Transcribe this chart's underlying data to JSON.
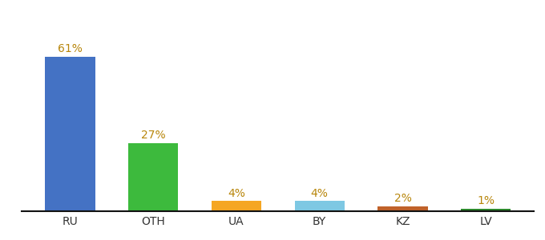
{
  "categories": [
    "RU",
    "OTH",
    "UA",
    "BY",
    "KZ",
    "LV"
  ],
  "values": [
    61,
    27,
    4,
    4,
    2,
    1
  ],
  "bar_colors": [
    "#4472c4",
    "#3dba3d",
    "#f5a623",
    "#7ec8e3",
    "#c0622a",
    "#2d8a2d"
  ],
  "labels": [
    "61%",
    "27%",
    "4%",
    "4%",
    "2%",
    "1%"
  ],
  "label_fontsize": 10,
  "tick_fontsize": 10,
  "ylim": [
    0,
    72
  ],
  "background_color": "#ffffff",
  "label_color": "#b8860b",
  "bar_width": 0.6,
  "bottom_spine_color": "#111111"
}
